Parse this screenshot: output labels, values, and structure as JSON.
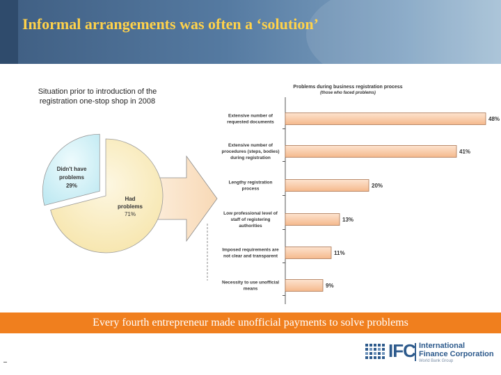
{
  "slide": {
    "title": "Informal arrangements was often a ‘solution’",
    "situation_caption": "Situation prior to introduction of the registration one-stop shop in 2008",
    "banner": "Every fourth entrepreneur made unofficial payments to solve problems",
    "logo": {
      "letters": "IFC",
      "name_line1": "International",
      "name_line2": "Finance Corporation",
      "sub": "World Bank Group"
    }
  },
  "colors": {
    "title": "#ffd24a",
    "banner": "#f07f1e",
    "bar_fill": "#f9c9a4",
    "bar_stroke": "#b07a55",
    "pie_had": "#fbefc8",
    "pie_didnt": "#cdf1f7",
    "arrow": "#fbe3c8"
  },
  "chart_data": [
    {
      "type": "pie",
      "slices": [
        {
          "label": "Didn't have problems",
          "value": 29,
          "value_label": "29%"
        },
        {
          "label": "Had problems",
          "value": 71,
          "value_label": "71%"
        }
      ]
    },
    {
      "type": "bar",
      "orientation": "horizontal",
      "title": "Problems during business registration process",
      "subtitle": "(those who faced problems)",
      "categories": [
        "Extensive number of requested documents",
        "Extensive number of procedures (steps, bodies) during registration",
        "Lengthy registration process",
        "Low professional level of staff of registering authorities",
        "Imposed requirements are not clear and transparent",
        "Necessity to use unofficial means"
      ],
      "values": [
        48,
        41,
        20,
        13,
        11,
        9
      ],
      "value_labels": [
        "48%",
        "41%",
        "20%",
        "13%",
        "11%",
        "9%"
      ],
      "xlim": [
        0,
        50
      ]
    }
  ]
}
